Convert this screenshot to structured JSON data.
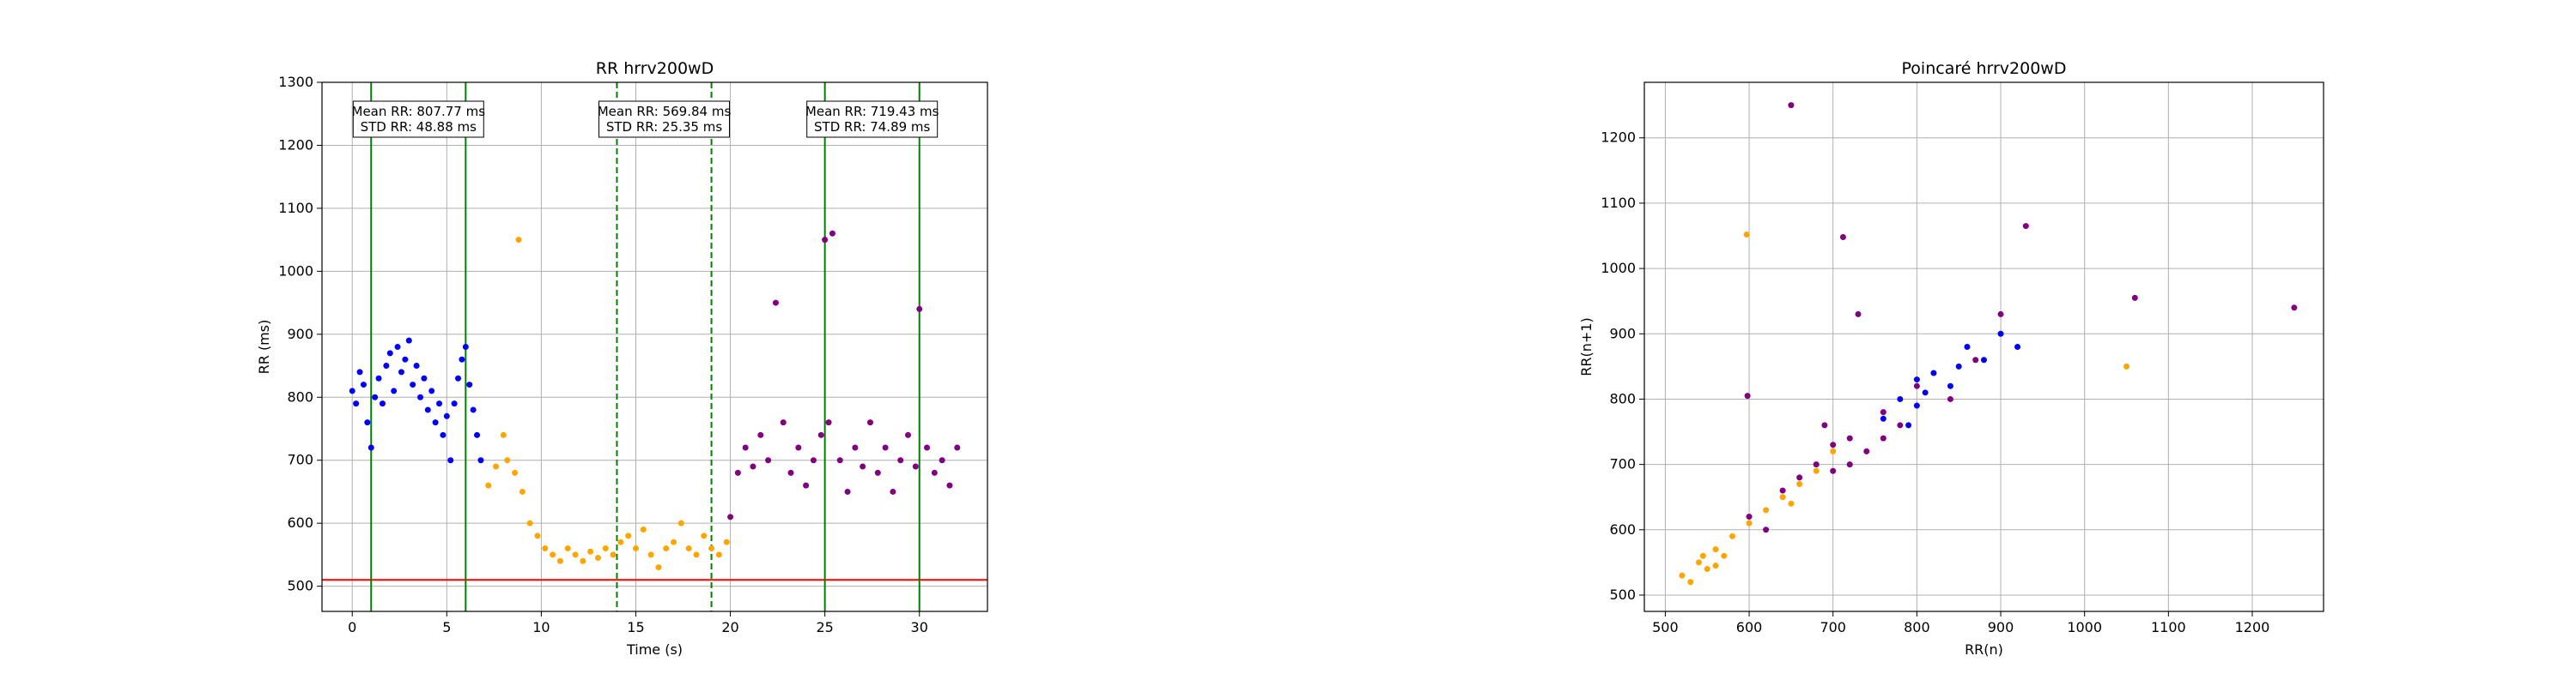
{
  "chart_data": [
    {
      "type": "scatter",
      "title": "RR hrrv200wD",
      "xlabel": "Time (s)",
      "ylabel": "RR (ms)",
      "xlim": [
        -1.6,
        33.6
      ],
      "ylim": [
        460,
        1300
      ],
      "xticks": [
        0,
        5,
        10,
        15,
        20,
        25,
        30
      ],
      "yticks": [
        500,
        600,
        700,
        800,
        900,
        1000,
        1100,
        1200,
        1300
      ],
      "grid": true,
      "colors": {
        "blue": "#0000ff",
        "orange": "#ffa500",
        "purple": "#800080",
        "green": "#008000",
        "red": "#ff0000"
      },
      "series": [
        {
          "color": "blue",
          "points": [
            [
              0.0,
              810
            ],
            [
              0.2,
              790
            ],
            [
              0.4,
              840
            ],
            [
              0.6,
              820
            ],
            [
              0.8,
              760
            ],
            [
              1.0,
              720
            ],
            [
              1.2,
              800
            ],
            [
              1.4,
              830
            ],
            [
              1.6,
              790
            ],
            [
              1.8,
              850
            ],
            [
              2.0,
              870
            ],
            [
              2.2,
              810
            ],
            [
              2.4,
              880
            ],
            [
              2.6,
              840
            ],
            [
              2.8,
              860
            ],
            [
              3.0,
              890
            ],
            [
              3.2,
              820
            ],
            [
              3.4,
              850
            ],
            [
              3.6,
              800
            ],
            [
              3.8,
              830
            ],
            [
              4.0,
              780
            ],
            [
              4.2,
              810
            ],
            [
              4.4,
              760
            ],
            [
              4.6,
              790
            ],
            [
              4.8,
              740
            ],
            [
              5.0,
              770
            ],
            [
              5.2,
              700
            ],
            [
              5.4,
              790
            ],
            [
              5.6,
              830
            ],
            [
              5.8,
              860
            ],
            [
              6.0,
              880
            ],
            [
              6.2,
              820
            ],
            [
              6.4,
              780
            ],
            [
              6.6,
              740
            ],
            [
              6.8,
              700
            ]
          ]
        },
        {
          "color": "orange",
          "points": [
            [
              7.2,
              660
            ],
            [
              7.6,
              690
            ],
            [
              8.0,
              740
            ],
            [
              8.2,
              700
            ],
            [
              8.6,
              680
            ],
            [
              8.8,
              1050
            ],
            [
              9.0,
              650
            ],
            [
              9.4,
              600
            ],
            [
              9.8,
              580
            ],
            [
              10.2,
              560
            ],
            [
              10.6,
              550
            ],
            [
              11.0,
              540
            ],
            [
              11.4,
              560
            ],
            [
              11.8,
              550
            ],
            [
              12.2,
              540
            ],
            [
              12.6,
              555
            ],
            [
              13.0,
              545
            ],
            [
              13.4,
              560
            ],
            [
              13.8,
              550
            ],
            [
              14.2,
              570
            ],
            [
              14.6,
              580
            ],
            [
              15.0,
              560
            ],
            [
              15.4,
              590
            ],
            [
              15.8,
              550
            ],
            [
              16.2,
              530
            ],
            [
              16.6,
              560
            ],
            [
              17.0,
              570
            ],
            [
              17.4,
              600
            ],
            [
              17.8,
              560
            ],
            [
              18.2,
              550
            ],
            [
              18.6,
              580
            ],
            [
              19.0,
              560
            ],
            [
              19.4,
              550
            ],
            [
              19.8,
              570
            ]
          ]
        },
        {
          "color": "purple",
          "points": [
            [
              20.0,
              610
            ],
            [
              20.4,
              680
            ],
            [
              20.8,
              720
            ],
            [
              21.2,
              690
            ],
            [
              21.6,
              740
            ],
            [
              22.0,
              700
            ],
            [
              22.4,
              950
            ],
            [
              22.8,
              760
            ],
            [
              23.2,
              680
            ],
            [
              23.6,
              720
            ],
            [
              24.0,
              660
            ],
            [
              24.4,
              700
            ],
            [
              24.8,
              740
            ],
            [
              25.0,
              1050
            ],
            [
              25.2,
              760
            ],
            [
              25.4,
              1060
            ],
            [
              25.8,
              700
            ],
            [
              26.2,
              650
            ],
            [
              26.6,
              720
            ],
            [
              27.0,
              690
            ],
            [
              27.4,
              760
            ],
            [
              27.8,
              680
            ],
            [
              28.2,
              720
            ],
            [
              28.6,
              650
            ],
            [
              29.0,
              700
            ],
            [
              29.4,
              740
            ],
            [
              29.8,
              690
            ],
            [
              30.0,
              940
            ],
            [
              30.4,
              720
            ],
            [
              30.8,
              680
            ],
            [
              31.2,
              700
            ],
            [
              31.6,
              660
            ],
            [
              32.0,
              720
            ]
          ]
        }
      ],
      "vlines": [
        {
          "x": 1,
          "style": "solid"
        },
        {
          "x": 6,
          "style": "solid"
        },
        {
          "x": 14,
          "style": "dashed"
        },
        {
          "x": 19,
          "style": "dashed"
        },
        {
          "x": 25,
          "style": "solid"
        },
        {
          "x": 30,
          "style": "solid"
        }
      ],
      "hline": {
        "y": 510
      },
      "annotations": [
        {
          "x": 3.5,
          "line1": "Mean RR: 807.77 ms",
          "line2": "STD RR: 48.88 ms"
        },
        {
          "x": 16.5,
          "line1": "Mean RR: 569.84 ms",
          "line2": "STD RR: 25.35 ms"
        },
        {
          "x": 27.5,
          "line1": "Mean RR: 719.43 ms",
          "line2": "STD RR: 74.89 ms"
        }
      ]
    },
    {
      "type": "scatter",
      "title": "Poincaré hrrv200wD",
      "xlabel": "RR(n)",
      "ylabel": "RR(n+1)",
      "xlim": [
        475,
        1285
      ],
      "ylim": [
        475,
        1285
      ],
      "xticks": [
        500,
        600,
        700,
        800,
        900,
        1000,
        1100,
        1200
      ],
      "yticks": [
        500,
        600,
        700,
        800,
        900,
        1000,
        1100,
        1200
      ],
      "grid": true,
      "colors": {
        "blue": "#0000ff",
        "orange": "#ffa500",
        "purple": "#800080"
      },
      "series": [
        {
          "color": "purple",
          "points": [
            [
              600,
              620
            ],
            [
              640,
              660
            ],
            [
              680,
              700
            ],
            [
              700,
              690
            ],
            [
              720,
              740
            ],
            [
              740,
              720
            ],
            [
              760,
              780
            ],
            [
              780,
              760
            ],
            [
              800,
              820
            ],
            [
              720,
              700
            ],
            [
              660,
              680
            ],
            [
              620,
              600
            ],
            [
              760,
              740
            ],
            [
              700,
              730
            ],
            [
              840,
              800
            ],
            [
              870,
              860
            ],
            [
              650,
              1250
            ],
            [
              712,
              1048
            ],
            [
              930,
              1065
            ],
            [
              1060,
              955
            ],
            [
              1250,
              940
            ],
            [
              598,
              805
            ],
            [
              730,
              930
            ],
            [
              900,
              930
            ],
            [
              690,
              760
            ]
          ]
        },
        {
          "color": "blue",
          "points": [
            [
              760,
              770
            ],
            [
              780,
              800
            ],
            [
              800,
              790
            ],
            [
              820,
              840
            ],
            [
              840,
              820
            ],
            [
              860,
              880
            ],
            [
              880,
              860
            ],
            [
              800,
              830
            ],
            [
              790,
              760
            ],
            [
              850,
              850
            ],
            [
              900,
              900
            ],
            [
              920,
              880
            ],
            [
              810,
              810
            ]
          ]
        },
        {
          "color": "orange",
          "points": [
            [
              520,
              530
            ],
            [
              540,
              550
            ],
            [
              550,
              540
            ],
            [
              560,
              570
            ],
            [
              570,
              560
            ],
            [
              580,
              590
            ],
            [
              600,
              610
            ],
            [
              620,
              630
            ],
            [
              640,
              650
            ],
            [
              660,
              670
            ],
            [
              680,
              690
            ],
            [
              560,
              545
            ],
            [
              530,
              520
            ],
            [
              545,
              560
            ],
            [
              597,
              1052
            ],
            [
              1050,
              850
            ],
            [
              700,
              720
            ],
            [
              650,
              640
            ]
          ]
        }
      ]
    }
  ]
}
